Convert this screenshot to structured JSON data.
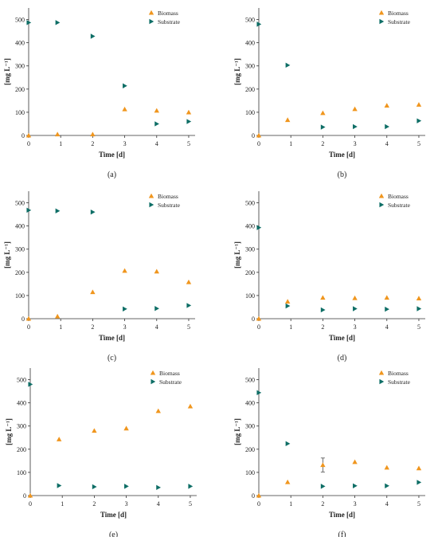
{
  "colors": {
    "biomass": "#F0961E",
    "substrate": "#0E6E66",
    "axis": "#333333"
  },
  "legend": {
    "biomass_label": "Biomass",
    "substrate_label": "Substrate"
  },
  "chart_data": [
    {
      "type": "scatter",
      "panel_label": "(a)",
      "xlabel": "Time [d]",
      "ylabel": "[mg L⁻¹]",
      "xlim": [
        0,
        5.2
      ],
      "ylim": [
        0,
        550
      ],
      "grid": false,
      "legend_position": "top-right",
      "x_ticks": [
        0,
        1,
        2,
        3,
        4,
        5
      ],
      "y_ticks": [
        0,
        100,
        200,
        300,
        400,
        500
      ],
      "series": [
        {
          "name": "Biomass",
          "x": [
            0,
            0.9,
            2,
            3,
            4,
            5
          ],
          "y": [
            0,
            5,
            5,
            113,
            107,
            100
          ]
        },
        {
          "name": "Substrate",
          "x": [
            0,
            0.9,
            2,
            3,
            4,
            5
          ],
          "y": [
            487,
            487,
            428,
            214,
            50,
            60
          ]
        }
      ]
    },
    {
      "type": "scatter",
      "panel_label": "(b)",
      "xlabel": "Time [d]",
      "ylabel": "[mg L⁻¹]",
      "xlim": [
        0,
        5.2
      ],
      "ylim": [
        0,
        550
      ],
      "grid": false,
      "legend_position": "top-right",
      "x_ticks": [
        0,
        1,
        2,
        3,
        4,
        5
      ],
      "y_ticks": [
        0,
        100,
        200,
        300,
        400,
        500
      ],
      "series": [
        {
          "name": "Biomass",
          "x": [
            0,
            0.9,
            2,
            3,
            4,
            5
          ],
          "y": [
            0,
            67,
            97,
            114,
            129,
            133
          ]
        },
        {
          "name": "Substrate",
          "x": [
            0,
            0.9,
            2,
            3,
            4,
            5
          ],
          "y": [
            480,
            303,
            36,
            38,
            38,
            63
          ]
        }
      ]
    },
    {
      "type": "scatter",
      "panel_label": "(c)",
      "xlabel": "Time [d]",
      "ylabel": "[mg L⁻¹]",
      "xlim": [
        0,
        5.2
      ],
      "ylim": [
        0,
        550
      ],
      "grid": false,
      "legend_position": "top-right",
      "x_ticks": [
        0,
        1,
        2,
        3,
        4,
        5
      ],
      "y_ticks": [
        0,
        100,
        200,
        300,
        400,
        500
      ],
      "series": [
        {
          "name": "Biomass",
          "x": [
            0,
            0.9,
            2,
            3,
            4,
            5
          ],
          "y": [
            0,
            10,
            115,
            207,
            204,
            158
          ]
        },
        {
          "name": "Substrate",
          "x": [
            0,
            0.9,
            2,
            3,
            4,
            5
          ],
          "y": [
            468,
            465,
            460,
            42,
            44,
            57
          ]
        }
      ]
    },
    {
      "type": "scatter",
      "panel_label": "(d)",
      "xlabel": "Time [d]",
      "ylabel": "[mg L⁻¹]",
      "xlim": [
        0,
        5.2
      ],
      "ylim": [
        0,
        550
      ],
      "grid": false,
      "legend_position": "top-right",
      "x_ticks": [
        0,
        1,
        2,
        3,
        4,
        5
      ],
      "y_ticks": [
        0,
        100,
        200,
        300,
        400,
        500
      ],
      "series": [
        {
          "name": "Biomass",
          "x": [
            0,
            0.9,
            2,
            3,
            4,
            5
          ],
          "y": [
            0,
            74,
            91,
            89,
            91,
            88
          ]
        },
        {
          "name": "Substrate",
          "x": [
            0,
            0.9,
            2,
            3,
            4,
            5
          ],
          "y": [
            393,
            55,
            38,
            43,
            41,
            43
          ]
        }
      ]
    },
    {
      "type": "scatter",
      "panel_label": "(e)",
      "xlabel": "Time [d]",
      "ylabel": "[mg L⁻¹]",
      "xlim": [
        0,
        5.2
      ],
      "ylim": [
        0,
        550
      ],
      "grid": false,
      "legend_position": "top-right",
      "x_ticks": [
        0,
        1,
        2,
        3,
        4,
        5
      ],
      "y_ticks": [
        0,
        100,
        200,
        300,
        400,
        500
      ],
      "series": [
        {
          "name": "Biomass",
          "x": [
            0,
            0.9,
            2,
            3,
            4,
            5
          ],
          "y": [
            0,
            243,
            280,
            290,
            365,
            385
          ]
        },
        {
          "name": "Substrate",
          "x": [
            0,
            0.9,
            2,
            3,
            4,
            5
          ],
          "y": [
            480,
            43,
            38,
            40,
            35,
            40
          ]
        }
      ]
    },
    {
      "type": "scatter",
      "panel_label": "(f)",
      "xlabel": "Time [d]",
      "ylabel": "[mg L⁻¹]",
      "xlim": [
        0,
        5.2
      ],
      "ylim": [
        0,
        550
      ],
      "grid": false,
      "legend_position": "top-right",
      "x_ticks": [
        0,
        1,
        2,
        3,
        4,
        5
      ],
      "y_ticks": [
        0,
        100,
        200,
        300,
        400,
        500
      ],
      "series": [
        {
          "name": "Biomass",
          "x": [
            0,
            0.9,
            2,
            3,
            4,
            5
          ],
          "y": [
            0,
            58,
            132,
            145,
            121,
            118
          ],
          "error": [
            0,
            0,
            30,
            0,
            0,
            0
          ]
        },
        {
          "name": "Substrate",
          "x": [
            0,
            0.9,
            2,
            3,
            4,
            5
          ],
          "y": [
            444,
            224,
            40,
            42,
            42,
            57
          ]
        }
      ]
    }
  ]
}
